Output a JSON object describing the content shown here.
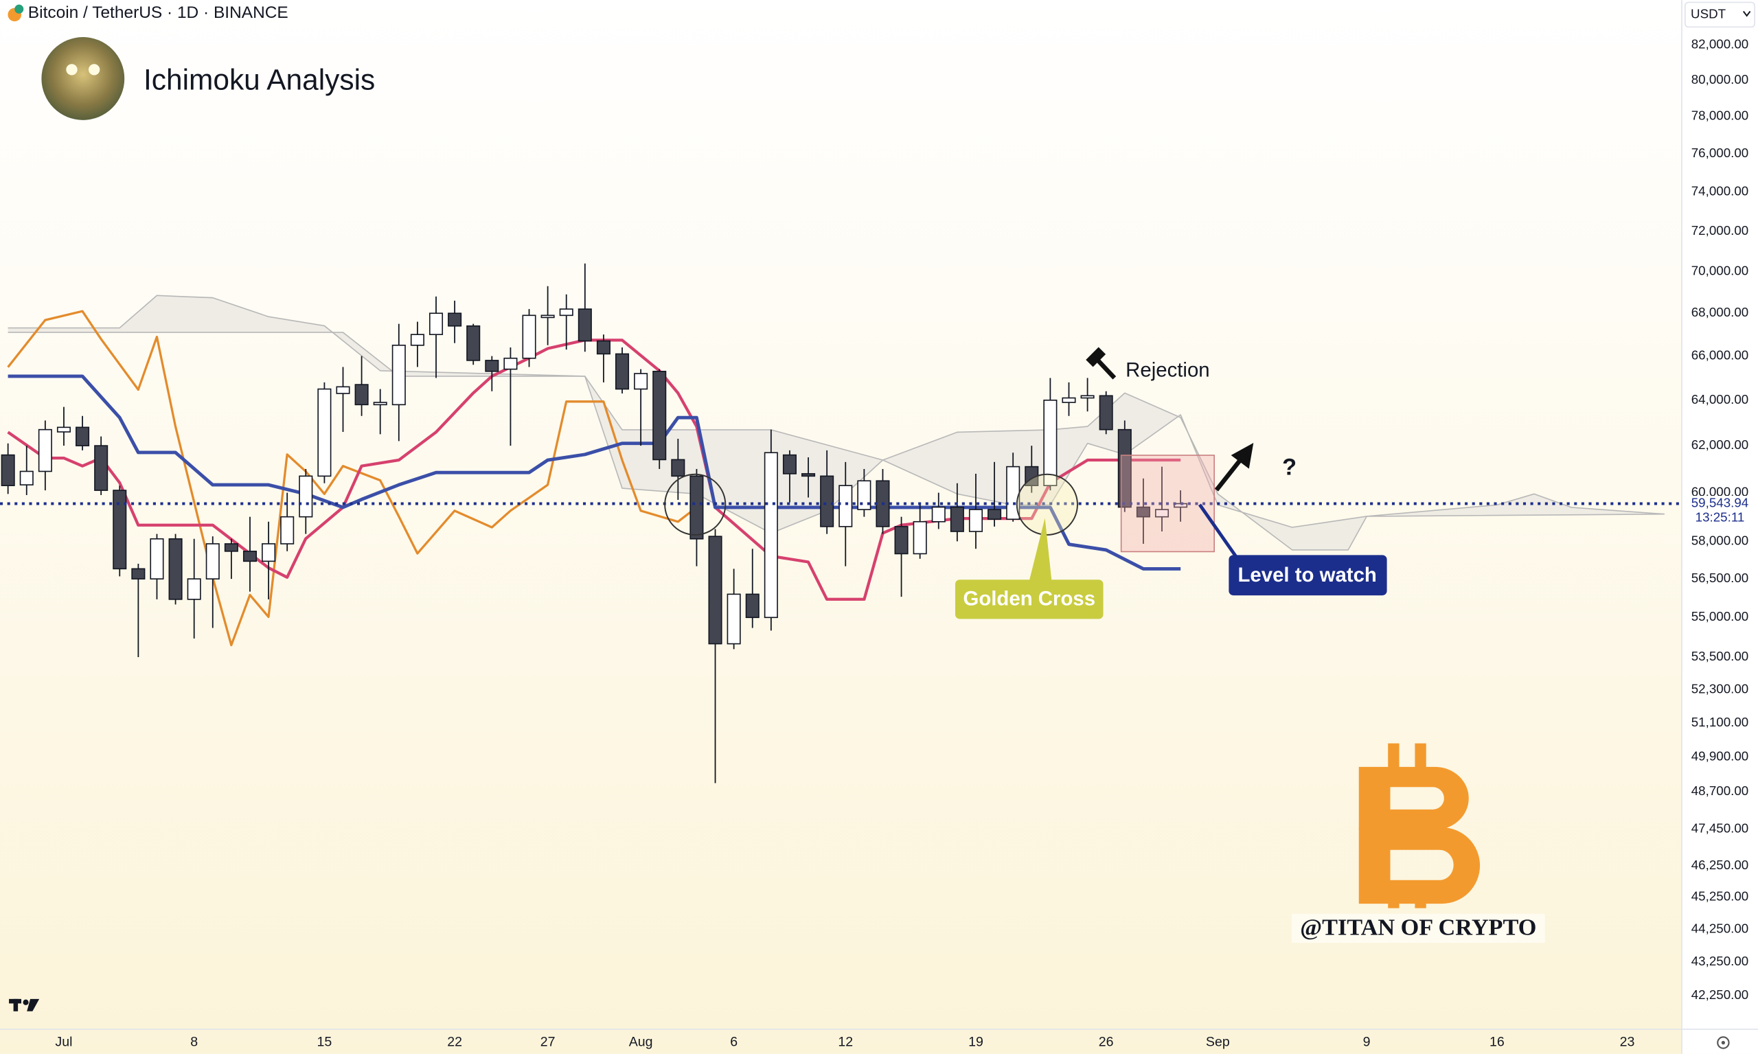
{
  "chart_data": {
    "type": "candlestick",
    "symbol": "Bitcoin / TetherUS · 1D · BINANCE",
    "currency": "USDT",
    "title": "Ichimoku Analysis",
    "annotations": {
      "rejection": "Rejection",
      "question": "?",
      "golden_cross": "Golden Cross",
      "level": "Level to watch",
      "watermark": "@TITAN OF CRYPTO"
    },
    "log_scale": true,
    "xlim": [
      -3.43,
      86.93
    ],
    "ylim": [
      41270,
      84600
    ],
    "xticks": [
      {
        "value": 0,
        "label": "Jul"
      },
      {
        "value": 7,
        "label": "8"
      },
      {
        "value": 14,
        "label": "15"
      },
      {
        "value": 21,
        "label": "22"
      },
      {
        "value": 26,
        "label": "27"
      },
      {
        "value": 31,
        "label": "Aug"
      },
      {
        "value": 36,
        "label": "6"
      },
      {
        "value": 42,
        "label": "12"
      },
      {
        "value": 49,
        "label": "19"
      },
      {
        "value": 56,
        "label": "26"
      },
      {
        "value": 62,
        "label": "Sep"
      },
      {
        "value": 70,
        "label": "9"
      },
      {
        "value": 77,
        "label": "16"
      },
      {
        "value": 84,
        "label": "23"
      }
    ],
    "yticks": [
      {
        "value": 82000,
        "label": "82,000.00"
      },
      {
        "value": 80000,
        "label": "80,000.00"
      },
      {
        "value": 78000,
        "label": "78,000.00"
      },
      {
        "value": 76000,
        "label": "76,000.00"
      },
      {
        "value": 74000,
        "label": "74,000.00"
      },
      {
        "value": 72000,
        "label": "72,000.00"
      },
      {
        "value": 70000,
        "label": "70,000.00"
      },
      {
        "value": 68000,
        "label": "68,000.00"
      },
      {
        "value": 66000,
        "label": "66,000.00"
      },
      {
        "value": 64000,
        "label": "64,000.00"
      },
      {
        "value": 62000,
        "label": "62,000.00"
      },
      {
        "value": 60000,
        "label": "60,000.00"
      },
      {
        "value": 58000,
        "label": "58,000.00"
      },
      {
        "value": 56500,
        "label": "56,500.00"
      },
      {
        "value": 55000,
        "label": "55,000.00"
      },
      {
        "value": 53500,
        "label": "53,500.00"
      },
      {
        "value": 52300,
        "label": "52,300.00"
      },
      {
        "value": 51100,
        "label": "51,100.00"
      },
      {
        "value": 49900,
        "label": "49,900.00"
      },
      {
        "value": 48700,
        "label": "48,700.00"
      },
      {
        "value": 47450,
        "label": "47,450.00"
      },
      {
        "value": 46250,
        "label": "46,250.00"
      },
      {
        "value": 45250,
        "label": "45,250.00"
      },
      {
        "value": 44250,
        "label": "44,250.00"
      },
      {
        "value": 43250,
        "label": "43,250.00"
      },
      {
        "value": 42250,
        "label": "42,250.00"
      }
    ],
    "last_price": {
      "value": 59543.94,
      "label": "59,543.94"
    },
    "countdown": "13:25:11",
    "up_color": "#ffffff",
    "down_color": "#434651",
    "candles": {
      "x": [
        -3,
        -2,
        -1,
        0,
        1,
        2,
        3,
        4,
        5,
        6,
        7,
        8,
        9,
        10,
        11,
        12,
        13,
        14,
        15,
        16,
        17,
        18,
        19,
        20,
        21,
        22,
        23,
        24,
        25,
        26,
        27,
        28,
        29,
        30,
        31,
        32,
        33,
        34,
        35,
        36,
        37,
        38,
        39,
        40,
        41,
        42,
        43,
        44,
        45,
        46,
        47,
        48,
        49,
        50,
        51,
        52,
        53,
        54,
        55,
        56,
        57,
        58,
        59,
        60
      ],
      "open": [
        61600,
        60330,
        60900,
        62600,
        62800,
        62000,
        60100,
        56900,
        56500,
        58100,
        55700,
        56500,
        57900,
        57600,
        57200,
        57900,
        59000,
        60700,
        64300,
        64700,
        63800,
        63800,
        66500,
        67000,
        68000,
        67400,
        65800,
        65400,
        65900,
        67800,
        67900,
        68200,
        66700,
        66100,
        64500,
        65300,
        61400,
        60700,
        58200,
        54000,
        55900,
        55000,
        61600,
        60800,
        60700,
        58600,
        59300,
        60500,
        58600,
        57500,
        58800,
        59400,
        58400,
        59300,
        58900,
        61100,
        60300,
        63900,
        64100,
        64200,
        62700,
        59400,
        59000,
        59400
      ],
      "high": [
        62100,
        62000,
        63100,
        63700,
        63300,
        62400,
        60300,
        57100,
        58300,
        58300,
        58100,
        58200,
        58100,
        59000,
        58800,
        60000,
        61000,
        64800,
        65500,
        66000,
        64500,
        67500,
        67600,
        68800,
        68600,
        67500,
        66000,
        66400,
        68200,
        69300,
        68900,
        70400,
        67000,
        66400,
        65400,
        65400,
        62300,
        61000,
        58500,
        56900,
        57700,
        62700,
        61800,
        61500,
        61800,
        61300,
        61000,
        61000,
        59000,
        59600,
        60000,
        60400,
        60800,
        61300,
        61700,
        62000,
        65000,
        64800,
        65000,
        64400,
        63100,
        60600,
        61100,
        60100
      ],
      "low": [
        59950,
        59900,
        60100,
        62000,
        61800,
        59900,
        56600,
        53500,
        55700,
        55500,
        54200,
        54600,
        56500,
        56000,
        55700,
        57600,
        58300,
        60400,
        62600,
        63300,
        62500,
        62200,
        65500,
        65000,
        66600,
        65600,
        64400,
        62000,
        65500,
        66500,
        66300,
        66200,
        64800,
        64300,
        62000,
        61000,
        59700,
        57000,
        49000,
        53800,
        54600,
        54500,
        59600,
        59800,
        58300,
        57000,
        59000,
        58300,
        55800,
        57300,
        58500,
        58000,
        57700,
        58600,
        58800,
        60000,
        60100,
        63300,
        63500,
        62500,
        59200,
        57900,
        58400,
        58800
      ],
      "close": [
        60300,
        60900,
        62700,
        62800,
        62000,
        60100,
        56900,
        56500,
        58100,
        55700,
        56500,
        57900,
        57600,
        57200,
        57900,
        59000,
        60700,
        64500,
        64600,
        63800,
        63900,
        66500,
        67000,
        68000,
        67400,
        65800,
        65300,
        65900,
        67900,
        67900,
        68200,
        66700,
        66100,
        64500,
        65200,
        61400,
        60700,
        58100,
        54000,
        55900,
        55000,
        61700,
        60800,
        60700,
        58600,
        60300,
        60500,
        58600,
        57500,
        58800,
        59400,
        58400,
        59300,
        58900,
        61100,
        60300,
        64000,
        64100,
        64200,
        62700,
        59400,
        59000,
        59300,
        59543.94
      ]
    },
    "cloud": {
      "color": "#b8b8b8",
      "fill": "#e9e7e1",
      "lines": [
        {
          "x": [
            -3,
            3,
            5,
            8,
            11,
            14,
            17,
            28,
            30,
            38,
            44,
            48,
            51,
            53,
            55,
            57,
            60,
            62,
            66,
            70,
            77,
            79,
            81,
            86
          ],
          "values": [
            67310,
            67310,
            68850,
            68740,
            67840,
            67410,
            65330,
            65080,
            62690,
            62690,
            61380,
            59950,
            59490,
            59490,
            62100,
            61620,
            63350,
            59490,
            58570,
            59020,
            59490,
            59950,
            59390,
            59110
          ]
        },
        {
          "x": [
            -3,
            15,
            18,
            28,
            30,
            34,
            38,
            41,
            44,
            48,
            53,
            55,
            57,
            60,
            62,
            66,
            69,
            70,
            86
          ],
          "values": [
            67100,
            67100,
            65080,
            65080,
            60190,
            59950,
            58330,
            59250,
            61380,
            62590,
            62690,
            62840,
            64320,
            63230,
            59950,
            57650,
            57650,
            59020,
            59110
          ]
        }
      ]
    },
    "lines": [
      {
        "color": "#e38b2c",
        "width": 2,
        "x": [
          -3,
          -1,
          1,
          2,
          4,
          5,
          6,
          8,
          9,
          10,
          11,
          12,
          13,
          14,
          15,
          17,
          18,
          19,
          21,
          23,
          24,
          26,
          27,
          29,
          30,
          31,
          33,
          34
        ],
        "values": [
          65490,
          67680,
          68100,
          66790,
          64470,
          66890,
          62840,
          56560,
          53950,
          55870,
          55020,
          61620,
          60900,
          59950,
          61130,
          60520,
          59020,
          57510,
          59250,
          58570,
          59250,
          60330,
          63940,
          63940,
          61380,
          59250,
          58800,
          59390
        ]
      },
      {
        "color": "#d6416e",
        "width": 2.6,
        "x": [
          -3,
          -1,
          0,
          1,
          2,
          3,
          4,
          8,
          11,
          12,
          13,
          15,
          16,
          18,
          20,
          22,
          23,
          25,
          26,
          28,
          30,
          32,
          33,
          34,
          35,
          38,
          40,
          41,
          43,
          44,
          45,
          48,
          52,
          53,
          55,
          60
        ],
        "values": [
          62590,
          61470,
          61470,
          61130,
          61470,
          60420,
          58660,
          58660,
          56940,
          56560,
          58110,
          59390,
          61130,
          61380,
          62590,
          64320,
          65080,
          65910,
          66350,
          66740,
          66740,
          65330,
          64320,
          62840,
          59390,
          57410,
          57170,
          55700,
          55700,
          58330,
          58660,
          58930,
          58930,
          60420,
          61380,
          61380
        ]
      },
      {
        "color": "#3b4fa8",
        "width": 3,
        "x": [
          -3,
          1,
          3,
          4,
          6,
          8,
          11,
          13,
          15,
          16,
          18,
          20,
          25,
          26,
          28,
          30,
          32,
          33,
          34,
          35,
          53,
          54,
          56,
          58,
          60
        ],
        "values": [
          65080,
          65080,
          63230,
          61710,
          61710,
          60330,
          60330,
          59950,
          59390,
          59720,
          60330,
          60850,
          60850,
          61380,
          61620,
          62100,
          62100,
          63230,
          63230,
          59390,
          59390,
          57880,
          57650,
          56900,
          56900
        ]
      }
    ]
  }
}
